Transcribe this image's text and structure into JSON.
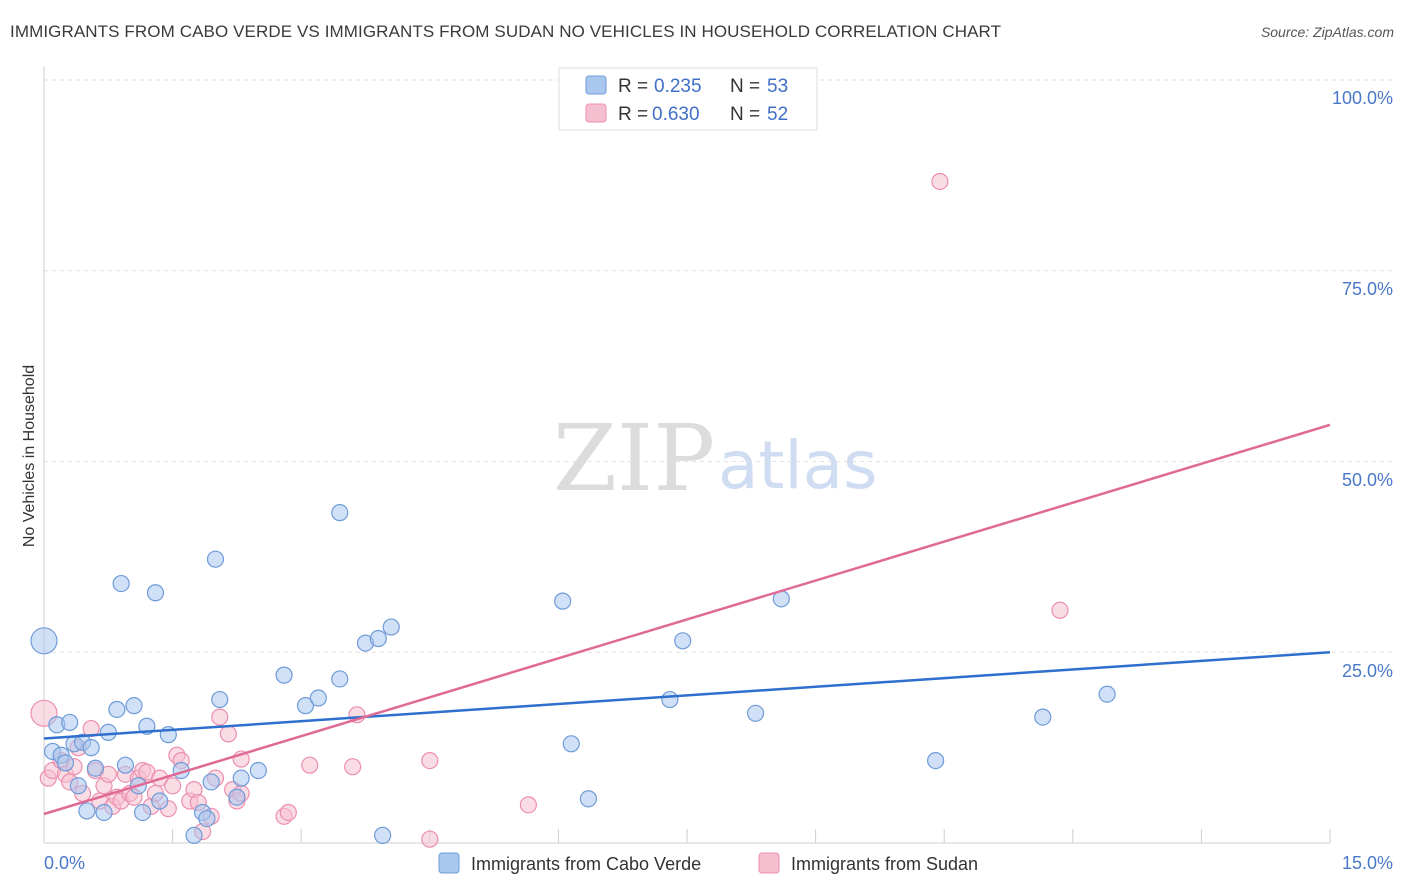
{
  "title": "IMMIGRANTS FROM CABO VERDE VS IMMIGRANTS FROM SUDAN NO VEHICLES IN HOUSEHOLD CORRELATION CHART",
  "source": "Source: ZipAtlas.com",
  "watermark": {
    "zip": "ZIP",
    "atlas": "atlas"
  },
  "colors": {
    "blue_fill": "#aac7ef",
    "blue_stroke": "#6f9bd8",
    "blue_line": "#2f6fce",
    "pink_fill": "#f6bfd0",
    "pink_stroke": "#ec8fae",
    "pink_line": "#e06a96",
    "grid": "#e2e2e2",
    "tick_text": "#4a78c8"
  },
  "chart_data": {
    "type": "scatter",
    "title": "IMMIGRANTS FROM CABO VERDE VS IMMIGRANTS FROM SUDAN NO VEHICLES IN HOUSEHOLD CORRELATION CHART",
    "xlabel": "",
    "ylabel": "No Vehicles in Household",
    "xlim": [
      0,
      15
    ],
    "ylim": [
      0,
      100
    ],
    "x_tick_labels": [
      "0.0%",
      "15.0%"
    ],
    "y_ticks": [
      25,
      50,
      75,
      100
    ],
    "y_tick_labels": [
      "25.0%",
      "50.0%",
      "75.0%",
      "100.0%"
    ],
    "legend": [
      {
        "r_label": "R =",
        "r": "0.235",
        "n_label": "N =",
        "n": "53"
      },
      {
        "r_label": "R =",
        "r": "0.630",
        "n_label": "N =",
        "n": "52"
      }
    ],
    "series": [
      {
        "name": "Immigrants from Cabo Verde",
        "color": "blue",
        "trend": {
          "x0": 0,
          "y0": 13.7,
          "x1": 15,
          "y1": 25.0
        },
        "points": [
          [
            0.0,
            26.5
          ],
          [
            0.1,
            12.0
          ],
          [
            0.15,
            15.5
          ],
          [
            0.2,
            11.5
          ],
          [
            0.25,
            10.5
          ],
          [
            0.3,
            15.8
          ],
          [
            0.35,
            13.0
          ],
          [
            0.4,
            7.5
          ],
          [
            0.45,
            13.2
          ],
          [
            0.5,
            4.2
          ],
          [
            0.55,
            12.5
          ],
          [
            0.6,
            9.8
          ],
          [
            0.7,
            4.0
          ],
          [
            0.75,
            14.5
          ],
          [
            0.85,
            17.5
          ],
          [
            0.9,
            34.0
          ],
          [
            0.95,
            10.2
          ],
          [
            1.05,
            18.0
          ],
          [
            1.1,
            7.5
          ],
          [
            1.15,
            4.0
          ],
          [
            1.2,
            15.3
          ],
          [
            1.3,
            32.8
          ],
          [
            1.35,
            5.5
          ],
          [
            1.45,
            14.2
          ],
          [
            1.6,
            9.5
          ],
          [
            1.75,
            1.0
          ],
          [
            1.85,
            4.0
          ],
          [
            1.9,
            3.2
          ],
          [
            1.95,
            8.0
          ],
          [
            2.0,
            37.2
          ],
          [
            2.05,
            18.8
          ],
          [
            2.25,
            6.0
          ],
          [
            2.3,
            8.5
          ],
          [
            2.5,
            9.5
          ],
          [
            2.8,
            22.0
          ],
          [
            3.05,
            18.0
          ],
          [
            3.2,
            19.0
          ],
          [
            3.45,
            43.3
          ],
          [
            3.45,
            21.5
          ],
          [
            3.75,
            26.2
          ],
          [
            3.9,
            26.8
          ],
          [
            4.05,
            28.3
          ],
          [
            3.95,
            1.0
          ],
          [
            6.05,
            31.7
          ],
          [
            6.15,
            13.0
          ],
          [
            6.35,
            5.8
          ],
          [
            7.3,
            18.8
          ],
          [
            7.45,
            26.5
          ],
          [
            8.3,
            17.0
          ],
          [
            8.6,
            32.0
          ],
          [
            10.4,
            10.8
          ],
          [
            11.65,
            16.5
          ],
          [
            12.4,
            19.5
          ]
        ]
      },
      {
        "name": "Immigrants from Sudan",
        "color": "pink",
        "trend": {
          "x0": 0,
          "y0": 3.8,
          "x1": 15,
          "y1": 54.8
        },
        "points": [
          [
            0.0,
            17.0
          ],
          [
            0.05,
            8.5
          ],
          [
            0.1,
            9.5
          ],
          [
            0.2,
            10.8
          ],
          [
            0.25,
            9.0
          ],
          [
            0.3,
            8.0
          ],
          [
            0.35,
            10.0
          ],
          [
            0.4,
            12.5
          ],
          [
            0.45,
            6.5
          ],
          [
            0.55,
            15.0
          ],
          [
            0.6,
            9.5
          ],
          [
            0.65,
            5.5
          ],
          [
            0.7,
            7.5
          ],
          [
            0.75,
            9.0
          ],
          [
            0.8,
            4.8
          ],
          [
            0.85,
            6.0
          ],
          [
            0.9,
            5.5
          ],
          [
            0.95,
            9.0
          ],
          [
            1.0,
            6.5
          ],
          [
            1.05,
            6.0
          ],
          [
            1.1,
            8.5
          ],
          [
            1.15,
            9.5
          ],
          [
            1.2,
            9.3
          ],
          [
            1.25,
            4.8
          ],
          [
            1.3,
            6.5
          ],
          [
            1.35,
            8.5
          ],
          [
            1.45,
            4.5
          ],
          [
            1.5,
            7.5
          ],
          [
            1.55,
            11.5
          ],
          [
            1.6,
            10.8
          ],
          [
            1.7,
            5.5
          ],
          [
            1.75,
            7.0
          ],
          [
            1.8,
            5.3
          ],
          [
            1.85,
            1.5
          ],
          [
            1.95,
            3.5
          ],
          [
            2.0,
            8.5
          ],
          [
            2.05,
            16.5
          ],
          [
            2.15,
            14.3
          ],
          [
            2.2,
            7.0
          ],
          [
            2.25,
            5.5
          ],
          [
            2.3,
            6.5
          ],
          [
            2.3,
            11.0
          ],
          [
            2.8,
            3.5
          ],
          [
            2.85,
            4.0
          ],
          [
            3.1,
            10.2
          ],
          [
            3.6,
            10.0
          ],
          [
            3.65,
            16.8
          ],
          [
            4.5,
            10.8
          ],
          [
            4.5,
            0.5
          ],
          [
            5.65,
            5.0
          ],
          [
            10.45,
            86.7
          ],
          [
            11.85,
            30.5
          ]
        ]
      }
    ]
  },
  "bottom_legend": [
    {
      "label": "Immigrants from Cabo Verde"
    },
    {
      "label": "Immigrants from Sudan"
    }
  ]
}
